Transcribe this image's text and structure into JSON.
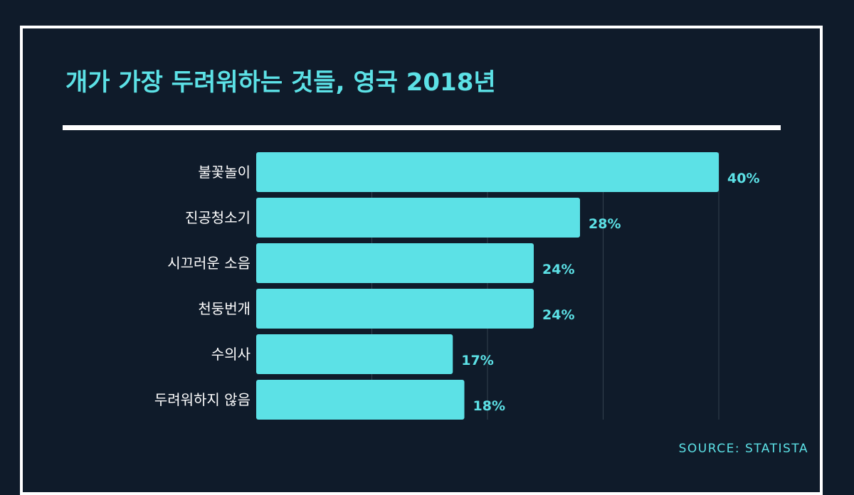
{
  "chart_data": {
    "type": "bar",
    "orientation": "horizontal",
    "title": "개가 가장 두려워하는 것들, 영국 2018년",
    "categories": [
      "불꽃놀이",
      "진공청소기",
      "시끄러운 소음",
      "천둥번개",
      "수의사",
      "두려워하지 않음"
    ],
    "values": [
      40,
      28,
      24,
      24,
      17,
      18
    ],
    "value_labels": [
      "40%",
      "28%",
      "24%",
      "24%",
      "17%",
      "18%"
    ],
    "xlim": [
      0,
      40
    ],
    "grid": true,
    "legend": "none",
    "bar_color": "#5ce1e6",
    "label_color": "#5ce1e6",
    "source": "SOURCE: STATISTA"
  },
  "colors": {
    "background": "#0f1b2a",
    "frame": "#ffffff",
    "gridline": "#33414f",
    "category_text": "#ffffff"
  }
}
